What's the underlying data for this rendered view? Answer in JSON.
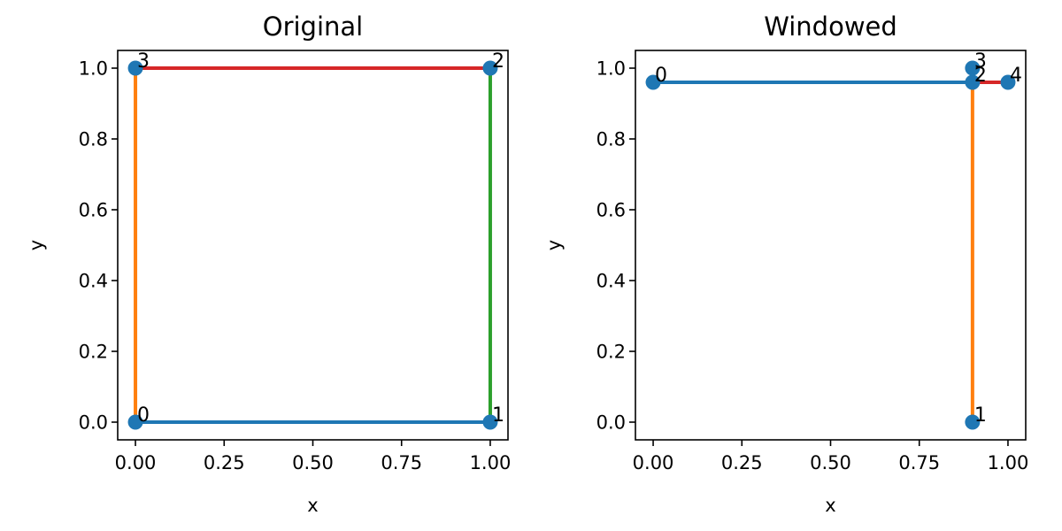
{
  "chart_data": [
    {
      "type": "line",
      "title": "Original",
      "xlabel": "x",
      "ylabel": "y",
      "xlim": [
        -0.05,
        1.05
      ],
      "ylim": [
        -0.05,
        1.05
      ],
      "xticks": [
        0.0,
        0.25,
        0.5,
        0.75,
        1.0
      ],
      "xtick_labels": [
        "0.00",
        "0.25",
        "0.50",
        "0.75",
        "1.00"
      ],
      "yticks": [
        0.0,
        0.2,
        0.4,
        0.6,
        0.8,
        1.0
      ],
      "ytick_labels": [
        "0.0",
        "0.2",
        "0.4",
        "0.6",
        "0.8",
        "1.0"
      ],
      "grid": false,
      "points": [
        {
          "label": "0",
          "x": 0.0,
          "y": 0.0
        },
        {
          "label": "1",
          "x": 1.0,
          "y": 0.0
        },
        {
          "label": "2",
          "x": 1.0,
          "y": 1.0
        },
        {
          "label": "3",
          "x": 0.0,
          "y": 1.0
        }
      ],
      "segments": [
        {
          "from": 0,
          "to": 1,
          "color": "#1f77b4"
        },
        {
          "from": 0,
          "to": 3,
          "color": "#ff7f0e"
        },
        {
          "from": 1,
          "to": 2,
          "color": "#2ca02c"
        },
        {
          "from": 3,
          "to": 2,
          "color": "#d62728"
        }
      ],
      "marker_color": "#1f77b4"
    },
    {
      "type": "line",
      "title": "Windowed",
      "xlabel": "x",
      "ylabel": "y",
      "xlim": [
        -0.05,
        1.05
      ],
      "ylim": [
        -0.05,
        1.05
      ],
      "xticks": [
        0.0,
        0.25,
        0.5,
        0.75,
        1.0
      ],
      "xtick_labels": [
        "0.00",
        "0.25",
        "0.50",
        "0.75",
        "1.00"
      ],
      "yticks": [
        0.0,
        0.2,
        0.4,
        0.6,
        0.8,
        1.0
      ],
      "ytick_labels": [
        "0.0",
        "0.2",
        "0.4",
        "0.6",
        "0.8",
        "1.0"
      ],
      "grid": false,
      "points": [
        {
          "label": "0",
          "x": 0.0,
          "y": 0.96
        },
        {
          "label": "1",
          "x": 0.9,
          "y": 0.0
        },
        {
          "label": "2",
          "x": 0.9,
          "y": 0.96
        },
        {
          "label": "3",
          "x": 0.9,
          "y": 1.0
        },
        {
          "label": "4",
          "x": 1.0,
          "y": 0.96
        }
      ],
      "segments": [
        {
          "from": 0,
          "to": 2,
          "color": "#1f77b4"
        },
        {
          "from": 1,
          "to": 2,
          "color": "#ff7f0e"
        },
        {
          "from": 2,
          "to": 3,
          "color": "#2ca02c"
        },
        {
          "from": 2,
          "to": 4,
          "color": "#d62728"
        }
      ],
      "marker_color": "#1f77b4"
    }
  ]
}
